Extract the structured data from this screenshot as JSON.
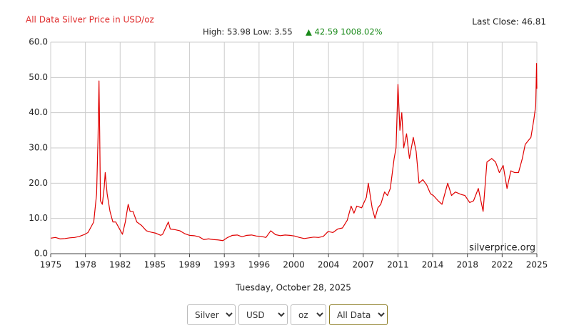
{
  "chart_data": {
    "type": "line",
    "title": "All Data Silver Price in USD/oz",
    "high_low": "High: 53.98 Low: 3.55",
    "change": "▲ 42.59 1008.02%",
    "last_close": "Last Close: 46.81",
    "watermark": "silverprice.org",
    "date": "Tuesday, October 28, 2025",
    "xlim": [
      1975,
      2025.82
    ],
    "xticks": [
      {
        "value": 1975,
        "label": "1975"
      },
      {
        "value": 1978.63,
        "label": "1978"
      },
      {
        "value": 1982.26,
        "label": "1982"
      },
      {
        "value": 1985.89,
        "label": "1985"
      },
      {
        "value": 1989.52,
        "label": "1989"
      },
      {
        "value": 1993.15,
        "label": "1993"
      },
      {
        "value": 1996.78,
        "label": "1996"
      },
      {
        "value": 2000.41,
        "label": "2000"
      },
      {
        "value": 2004.04,
        "label": "2004"
      },
      {
        "value": 2007.67,
        "label": "2007"
      },
      {
        "value": 2011.3,
        "label": "2011"
      },
      {
        "value": 2014.93,
        "label": "2014"
      },
      {
        "value": 2018.56,
        "label": "2018"
      },
      {
        "value": 2022.19,
        "label": "2022"
      },
      {
        "value": 2025.82,
        "label": "2025"
      }
    ],
    "ylim": [
      0,
      60
    ],
    "yticks": [
      {
        "value": 0,
        "label": "0.0"
      },
      {
        "value": 10,
        "label": "10.0"
      },
      {
        "value": 20,
        "label": "20.0"
      },
      {
        "value": 30,
        "label": "30.0"
      },
      {
        "value": 40,
        "label": "40.0"
      },
      {
        "value": 50,
        "label": "50.0"
      },
      {
        "value": 60,
        "label": "60.0"
      }
    ],
    "grid": true,
    "x": [
      1975.0,
      1975.5,
      1976.0,
      1976.5,
      1977.0,
      1977.5,
      1978.0,
      1978.5,
      1978.9,
      1979.2,
      1979.5,
      1979.8,
      1979.95,
      1980.05,
      1980.12,
      1980.2,
      1980.4,
      1980.6,
      1980.7,
      1980.9,
      1981.2,
      1981.5,
      1981.8,
      1982.2,
      1982.5,
      1982.8,
      1983.1,
      1983.3,
      1983.6,
      1984.0,
      1984.5,
      1985.0,
      1985.5,
      1986.0,
      1986.5,
      1986.7,
      1987.3,
      1987.5,
      1988.0,
      1988.5,
      1989.0,
      1989.5,
      1990.0,
      1990.5,
      1991.0,
      1991.5,
      1992.0,
      1992.5,
      1993.0,
      1993.5,
      1994.0,
      1994.5,
      1995.0,
      1995.5,
      1996.0,
      1996.5,
      1997.0,
      1997.5,
      1998.0,
      1998.5,
      1999.0,
      1999.5,
      2000.0,
      2000.5,
      2001.0,
      2001.5,
      2002.0,
      2002.5,
      2003.0,
      2003.5,
      2004.0,
      2004.5,
      2005.0,
      2005.5,
      2006.0,
      2006.4,
      2006.7,
      2007.0,
      2007.5,
      2008.0,
      2008.2,
      2008.6,
      2008.9,
      2009.2,
      2009.5,
      2009.9,
      2010.2,
      2010.5,
      2010.9,
      2011.1,
      2011.3,
      2011.5,
      2011.7,
      2011.9,
      2012.2,
      2012.5,
      2012.9,
      2013.2,
      2013.5,
      2013.9,
      2014.3,
      2014.7,
      2015.0,
      2015.5,
      2015.9,
      2016.5,
      2016.9,
      2017.3,
      2017.9,
      2018.3,
      2018.8,
      2019.2,
      2019.7,
      2020.2,
      2020.6,
      2021.1,
      2021.5,
      2021.9,
      2022.3,
      2022.7,
      2023.1,
      2023.5,
      2023.9,
      2024.3,
      2024.6,
      2024.9,
      2025.2,
      2025.5,
      2025.7,
      2025.79,
      2025.82
    ],
    "series": [
      {
        "name": "Silver",
        "color": "#e00000",
        "values": [
          4.4,
          4.6,
          4.2,
          4.3,
          4.5,
          4.6,
          4.9,
          5.4,
          6.0,
          7.5,
          9,
          17,
          33,
          49,
          35,
          15,
          14,
          19,
          23,
          17,
          12,
          9,
          9,
          7,
          5.5,
          9,
          14,
          12,
          12,
          9,
          8,
          6.5,
          6.1,
          5.8,
          5.2,
          5.5,
          9,
          7,
          6.8,
          6.5,
          5.7,
          5.2,
          5.1,
          4.8,
          4.0,
          4.2,
          4.0,
          3.9,
          3.7,
          4.6,
          5.2,
          5.3,
          4.8,
          5.2,
          5.3,
          5.0,
          4.9,
          4.6,
          6.5,
          5.4,
          5.1,
          5.3,
          5.2,
          5.0,
          4.6,
          4.3,
          4.5,
          4.7,
          4.6,
          4.9,
          6.3,
          6.0,
          7.0,
          7.3,
          9.5,
          13.5,
          11.5,
          13.5,
          13,
          16,
          20,
          13,
          10,
          13,
          14,
          17.5,
          16.5,
          18.5,
          27,
          30,
          48,
          35,
          40,
          30,
          34,
          27,
          33,
          29,
          20,
          21,
          19.5,
          17,
          16.5,
          15,
          14,
          20,
          16.5,
          17.5,
          16.8,
          16.5,
          14.5,
          15,
          18.5,
          12,
          26,
          27,
          26,
          23,
          25,
          18.5,
          23.5,
          23,
          23,
          27,
          31,
          32,
          33,
          38,
          42,
          53.98,
          46.81
        ]
      }
    ]
  },
  "controls": [
    "Silver",
    "USD",
    "oz",
    "All Data"
  ]
}
